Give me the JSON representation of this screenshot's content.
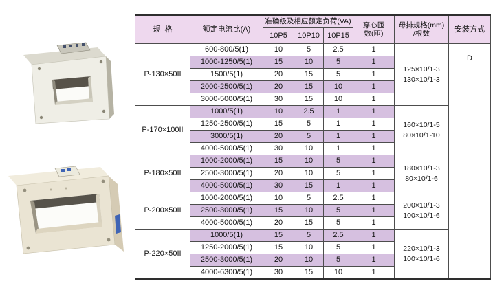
{
  "colors": {
    "header_bg": "#eed8ee",
    "stripe_bg": "#d6c0e0",
    "grid_line": "#4d4d4d",
    "photo_body": "#efeee6",
    "photo_body_tan": "#eae4d3",
    "label_blue": "#3f64b5"
  },
  "photos": {
    "top": "busbar-current-transformer-angled",
    "bottom": "busbar-current-transformer-wide"
  },
  "table": {
    "headers": {
      "spec": "规  格",
      "ratio": "额定电流比(A)",
      "burden_group": "准确级及相应额定负荷(VA)",
      "burden_cols": [
        "10P5",
        "10P10",
        "10P15"
      ],
      "turns_line1": "穿心匝",
      "turns_line2": "数(匝)",
      "busbar_line1": "母排规格(mm)",
      "busbar_line2": "/根数",
      "install": "安装方式"
    },
    "install_method": "D",
    "groups": [
      {
        "spec": "P-130×50II",
        "busbar": [
          "125×10/1-3",
          "130×10/1-3"
        ],
        "rows": [
          {
            "ratio": "600-800/5(1)",
            "p5": "10",
            "p10": "5",
            "p15": "2.5",
            "turns": "1"
          },
          {
            "ratio": "1000-1250/5(1)",
            "p5": "15",
            "p10": "10",
            "p15": "5",
            "turns": "1"
          },
          {
            "ratio": "1500/5(1)",
            "p5": "20",
            "p10": "15",
            "p15": "5",
            "turns": "1"
          },
          {
            "ratio": "2000-2500/5(1)",
            "p5": "20",
            "p10": "15",
            "p15": "10",
            "turns": "1"
          },
          {
            "ratio": "3000-5000/5(1)",
            "p5": "30",
            "p10": "15",
            "p15": "10",
            "turns": "1"
          }
        ]
      },
      {
        "spec": "P-170×100II",
        "busbar": [
          "160×10/1-5",
          "80×10/1-10"
        ],
        "rows": [
          {
            "ratio": "1000/5(1)",
            "p5": "10",
            "p10": "2.5",
            "p15": "1",
            "turns": "1"
          },
          {
            "ratio": "1250-2500/5(1)",
            "p5": "15",
            "p10": "5",
            "p15": "1",
            "turns": "1"
          },
          {
            "ratio": "3000/5(1)",
            "p5": "20",
            "p10": "5",
            "p15": "1",
            "turns": "1"
          },
          {
            "ratio": "4000-5000/5(1)",
            "p5": "30",
            "p10": "10",
            "p15": "1",
            "turns": "1"
          }
        ]
      },
      {
        "spec": "P-180×50II",
        "busbar": [
          "180×10/1-3",
          "80×10/1-6"
        ],
        "rows": [
          {
            "ratio": "1000-2000/5(1)",
            "p5": "15",
            "p10": "10",
            "p15": "5",
            "turns": "1"
          },
          {
            "ratio": "2500-3000/5(1)",
            "p5": "20",
            "p10": "10",
            "p15": "5",
            "turns": "1"
          },
          {
            "ratio": "4000-5000/5(1)",
            "p5": "30",
            "p10": "15",
            "p15": "1",
            "turns": "1"
          }
        ]
      },
      {
        "spec": "P-200×50II",
        "busbar": [
          "200×10/1-3",
          "100×10/1-6"
        ],
        "rows": [
          {
            "ratio": "1000-2000/5(1)",
            "p5": "10",
            "p10": "5",
            "p15": "2.5",
            "turns": "1"
          },
          {
            "ratio": "2500-3000/5(1)",
            "p5": "15",
            "p10": "10",
            "p15": "5",
            "turns": "1"
          },
          {
            "ratio": "4000-5000/5(1)",
            "p5": "20",
            "p10": "15",
            "p15": "5",
            "turns": "1"
          }
        ]
      },
      {
        "spec": "P-220×50II",
        "busbar": [
          "220×10/1-3",
          "100×10/1-6"
        ],
        "rows": [
          {
            "ratio": "1000/5(1)",
            "p5": "15",
            "p10": "5",
            "p15": "2.5",
            "turns": "1"
          },
          {
            "ratio": "1250-2000/5(1)",
            "p5": "15",
            "p10": "10",
            "p15": "5",
            "turns": "1"
          },
          {
            "ratio": "2500-3000/5(1)",
            "p5": "20",
            "p10": "10",
            "p15": "5",
            "turns": "1"
          },
          {
            "ratio": "4000-6300/5(1)",
            "p5": "30",
            "p10": "15",
            "p15": "10",
            "turns": "1"
          }
        ]
      }
    ]
  }
}
